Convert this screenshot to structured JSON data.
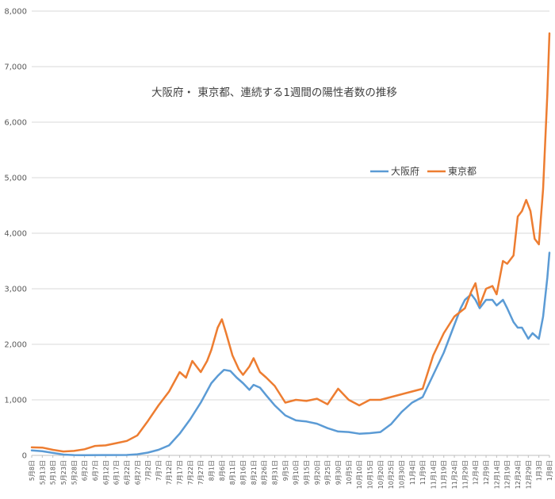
{
  "chart_data": {
    "type": "line",
    "title": "大阪府・ 東京都、連続する1週間の陽性者数の推移",
    "xlabel": "",
    "ylabel": "",
    "ylim": [
      0,
      8000
    ],
    "yticks": [
      "0",
      "1,000",
      "2,000",
      "3,000",
      "4,000",
      "5,000",
      "6,000",
      "7,000",
      "8,000"
    ],
    "grid": true,
    "legend_position": "upper-right",
    "x_tick_labels": [
      "5月8日",
      "5月13日",
      "5月18日",
      "5月23日",
      "5月28日",
      "6月2日",
      "6月7日",
      "6月12日",
      "6月17日",
      "6月22日",
      "6月27日",
      "7月2日",
      "7月7日",
      "7月12日",
      "7月17日",
      "7月22日",
      "7月27日",
      "8月1日",
      "8月6日",
      "8月11日",
      "8月16日",
      "8月21日",
      "8月26日",
      "8月31日",
      "9月5日",
      "9月10日",
      "9月15日",
      "9月20日",
      "9月25日",
      "9月30日",
      "10月5日",
      "10月10日",
      "10月15日",
      "10月20日",
      "10月25日",
      "10月30日",
      "11月4日",
      "11月9日",
      "11月14日",
      "11月19日",
      "11月24日",
      "11月29日",
      "12月4日",
      "12月9日",
      "12月14日",
      "12月19日",
      "12月24日",
      "12月29日",
      "1月3日",
      "1月8日"
    ],
    "x_range": [
      "2020-05-08",
      "2021-01-08"
    ],
    "series": [
      {
        "name": "大阪府",
        "color": "#5b9bd5",
        "points": [
          [
            "2020-05-08",
            90
          ],
          [
            "2020-05-13",
            75
          ],
          [
            "2020-05-18",
            45
          ],
          [
            "2020-05-23",
            15
          ],
          [
            "2020-05-28",
            5
          ],
          [
            "2020-06-02",
            3
          ],
          [
            "2020-06-12",
            5
          ],
          [
            "2020-06-22",
            8
          ],
          [
            "2020-06-27",
            20
          ],
          [
            "2020-07-02",
            50
          ],
          [
            "2020-07-07",
            100
          ],
          [
            "2020-07-12",
            180
          ],
          [
            "2020-07-17",
            390
          ],
          [
            "2020-07-22",
            650
          ],
          [
            "2020-07-27",
            950
          ],
          [
            "2020-08-01",
            1300
          ],
          [
            "2020-08-04",
            1430
          ],
          [
            "2020-08-07",
            1540
          ],
          [
            "2020-08-10",
            1520
          ],
          [
            "2020-08-13",
            1400
          ],
          [
            "2020-08-16",
            1300
          ],
          [
            "2020-08-19",
            1180
          ],
          [
            "2020-08-21",
            1270
          ],
          [
            "2020-08-24",
            1220
          ],
          [
            "2020-08-27",
            1080
          ],
          [
            "2020-08-31",
            900
          ],
          [
            "2020-09-05",
            720
          ],
          [
            "2020-09-10",
            630
          ],
          [
            "2020-09-15",
            610
          ],
          [
            "2020-09-20",
            570
          ],
          [
            "2020-09-25",
            490
          ],
          [
            "2020-09-30",
            430
          ],
          [
            "2020-10-05",
            420
          ],
          [
            "2020-10-10",
            390
          ],
          [
            "2020-10-15",
            400
          ],
          [
            "2020-10-20",
            420
          ],
          [
            "2020-10-25",
            560
          ],
          [
            "2020-10-30",
            780
          ],
          [
            "2020-11-04",
            950
          ],
          [
            "2020-11-09",
            1050
          ],
          [
            "2020-11-14",
            1450
          ],
          [
            "2020-11-19",
            1850
          ],
          [
            "2020-11-24",
            2350
          ],
          [
            "2020-11-27",
            2650
          ],
          [
            "2020-11-29",
            2800
          ],
          [
            "2020-12-02",
            2900
          ],
          [
            "2020-12-04",
            2800
          ],
          [
            "2020-12-06",
            2650
          ],
          [
            "2020-12-09",
            2800
          ],
          [
            "2020-12-12",
            2800
          ],
          [
            "2020-12-14",
            2700
          ],
          [
            "2020-12-17",
            2800
          ],
          [
            "2020-12-19",
            2650
          ],
          [
            "2020-12-22",
            2400
          ],
          [
            "2020-12-24",
            2300
          ],
          [
            "2020-12-26",
            2300
          ],
          [
            "2020-12-29",
            2100
          ],
          [
            "2020-12-31",
            2200
          ],
          [
            "2021-01-03",
            2100
          ],
          [
            "2021-01-05",
            2500
          ],
          [
            "2021-01-07",
            3200
          ],
          [
            "2021-01-08",
            3650
          ]
        ]
      },
      {
        "name": "東京都",
        "color": "#ed7d31",
        "points": [
          [
            "2020-05-08",
            145
          ],
          [
            "2020-05-13",
            140
          ],
          [
            "2020-05-18",
            100
          ],
          [
            "2020-05-23",
            70
          ],
          [
            "2020-05-28",
            80
          ],
          [
            "2020-06-02",
            110
          ],
          [
            "2020-06-07",
            170
          ],
          [
            "2020-06-12",
            180
          ],
          [
            "2020-06-17",
            220
          ],
          [
            "2020-06-22",
            260
          ],
          [
            "2020-06-27",
            360
          ],
          [
            "2020-07-02",
            620
          ],
          [
            "2020-07-07",
            900
          ],
          [
            "2020-07-12",
            1150
          ],
          [
            "2020-07-17",
            1500
          ],
          [
            "2020-07-20",
            1400
          ],
          [
            "2020-07-23",
            1700
          ],
          [
            "2020-07-27",
            1500
          ],
          [
            "2020-07-30",
            1700
          ],
          [
            "2020-08-01",
            1900
          ],
          [
            "2020-08-04",
            2300
          ],
          [
            "2020-08-06",
            2450
          ],
          [
            "2020-08-08",
            2200
          ],
          [
            "2020-08-11",
            1800
          ],
          [
            "2020-08-14",
            1550
          ],
          [
            "2020-08-16",
            1450
          ],
          [
            "2020-08-19",
            1600
          ],
          [
            "2020-08-21",
            1750
          ],
          [
            "2020-08-24",
            1500
          ],
          [
            "2020-08-27",
            1400
          ],
          [
            "2020-08-31",
            1250
          ],
          [
            "2020-09-05",
            950
          ],
          [
            "2020-09-10",
            1000
          ],
          [
            "2020-09-15",
            980
          ],
          [
            "2020-09-20",
            1020
          ],
          [
            "2020-09-25",
            920
          ],
          [
            "2020-09-30",
            1200
          ],
          [
            "2020-10-05",
            1000
          ],
          [
            "2020-10-10",
            900
          ],
          [
            "2020-10-15",
            1000
          ],
          [
            "2020-10-20",
            1000
          ],
          [
            "2020-10-25",
            1050
          ],
          [
            "2020-10-30",
            1100
          ],
          [
            "2020-11-04",
            1150
          ],
          [
            "2020-11-09",
            1200
          ],
          [
            "2020-11-14",
            1800
          ],
          [
            "2020-11-19",
            2200
          ],
          [
            "2020-11-24",
            2500
          ],
          [
            "2020-11-29",
            2650
          ],
          [
            "2020-12-02",
            2950
          ],
          [
            "2020-12-04",
            3100
          ],
          [
            "2020-12-06",
            2700
          ],
          [
            "2020-12-09",
            3000
          ],
          [
            "2020-12-12",
            3050
          ],
          [
            "2020-12-14",
            2900
          ],
          [
            "2020-12-17",
            3500
          ],
          [
            "2020-12-19",
            3450
          ],
          [
            "2020-12-22",
            3600
          ],
          [
            "2020-12-24",
            4300
          ],
          [
            "2020-12-26",
            4400
          ],
          [
            "2020-12-28",
            4600
          ],
          [
            "2020-12-30",
            4400
          ],
          [
            "2021-01-01",
            3900
          ],
          [
            "2021-01-03",
            3800
          ],
          [
            "2021-01-05",
            4800
          ],
          [
            "2021-01-07",
            6500
          ],
          [
            "2021-01-08",
            7600
          ]
        ]
      }
    ]
  }
}
